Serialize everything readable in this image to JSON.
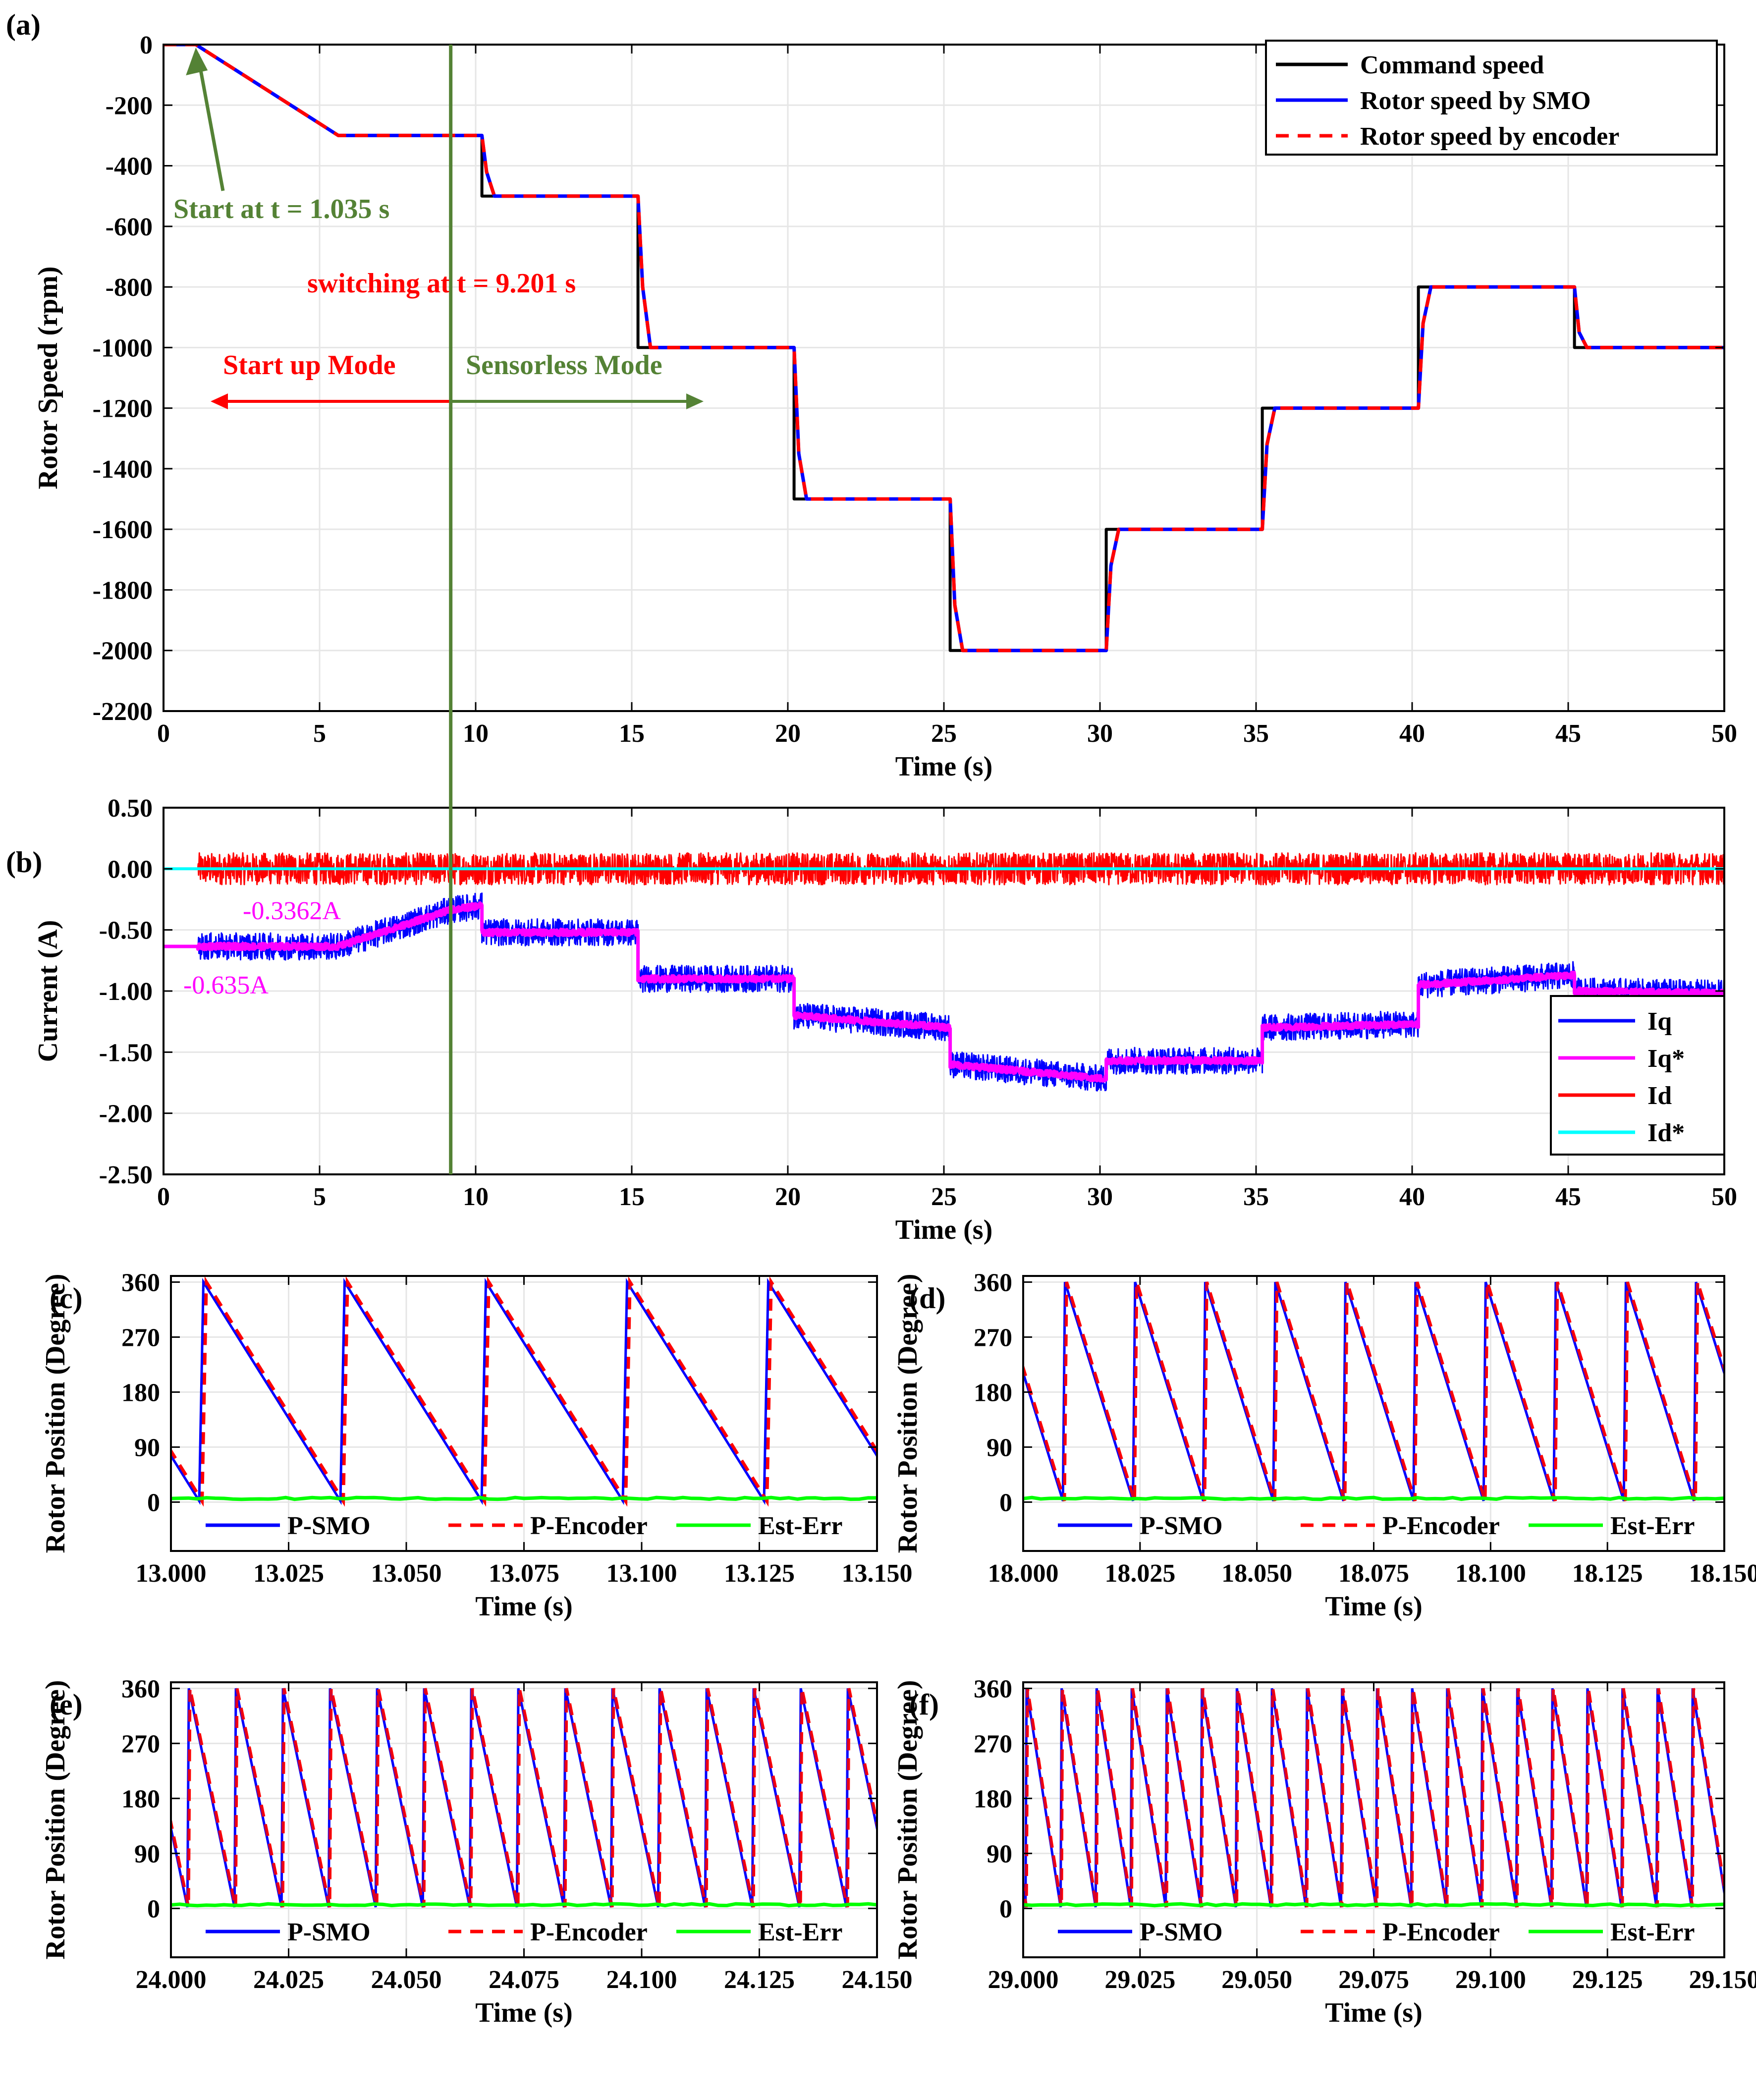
{
  "colors": {
    "command": "#000000",
    "smo": "#0000ff",
    "encoder": "#ff0000",
    "iq": "#0000ff",
    "iq_ref": "#ff00ff",
    "id": "#ff0000",
    "id_ref": "#00ffff",
    "est_err": "#00ff00",
    "start_annot": "#548235",
    "switch_annot": "#ff0000",
    "grid": "#e6e6e6"
  },
  "chart_data": [
    {
      "id": "a",
      "panel_label": "(a)",
      "type": "line",
      "xlabel": "Time (s)",
      "ylabel": "Rotor Speed (rpm)",
      "xlim": [
        0,
        50
      ],
      "ylim": [
        -2200,
        0
      ],
      "xticks": [
        0,
        5,
        10,
        15,
        20,
        25,
        30,
        35,
        40,
        45,
        50
      ],
      "yticks": [
        0,
        -200,
        -400,
        -600,
        -800,
        -1000,
        -1200,
        -1400,
        -1600,
        -1800,
        -2000,
        -2200
      ],
      "grid": true,
      "legend_position": "top-right",
      "series": [
        {
          "name": "Command speed",
          "key": "command",
          "points": [
            [
              0,
              0
            ],
            [
              1.035,
              0
            ],
            [
              5.6,
              -300
            ],
            [
              10.2,
              -300
            ],
            [
              10.2,
              -500
            ],
            [
              15.2,
              -500
            ],
            [
              15.2,
              -1000
            ],
            [
              20.2,
              -1000
            ],
            [
              20.2,
              -1500
            ],
            [
              25.2,
              -1500
            ],
            [
              25.2,
              -2000
            ],
            [
              30.2,
              -2000
            ],
            [
              30.2,
              -1600
            ],
            [
              35.2,
              -1600
            ],
            [
              35.2,
              -1200
            ],
            [
              40.2,
              -1200
            ],
            [
              40.2,
              -800
            ],
            [
              45.2,
              -800
            ],
            [
              45.2,
              -1000
            ],
            [
              50,
              -1000
            ]
          ]
        },
        {
          "name": "Rotor speed by SMO",
          "key": "smo",
          "points": [
            [
              0,
              0
            ],
            [
              1.035,
              0
            ],
            [
              5.6,
              -300
            ],
            [
              10.2,
              -300
            ],
            [
              10.35,
              -420
            ],
            [
              10.6,
              -500
            ],
            [
              15.2,
              -500
            ],
            [
              15.35,
              -800
            ],
            [
              15.6,
              -1000
            ],
            [
              20.2,
              -1000
            ],
            [
              20.35,
              -1350
            ],
            [
              20.6,
              -1500
            ],
            [
              25.2,
              -1500
            ],
            [
              25.35,
              -1850
            ],
            [
              25.6,
              -2000
            ],
            [
              30.2,
              -2000
            ],
            [
              30.35,
              -1720
            ],
            [
              30.6,
              -1600
            ],
            [
              35.2,
              -1600
            ],
            [
              35.35,
              -1320
            ],
            [
              35.6,
              -1200
            ],
            [
              40.2,
              -1200
            ],
            [
              40.35,
              -920
            ],
            [
              40.6,
              -800
            ],
            [
              45.2,
              -800
            ],
            [
              45.35,
              -950
            ],
            [
              45.6,
              -1000
            ],
            [
              50,
              -1000
            ]
          ]
        },
        {
          "name": "Rotor speed by encoder",
          "key": "encoder",
          "dashed": true,
          "points": [
            [
              0,
              0
            ],
            [
              1.035,
              0
            ],
            [
              5.6,
              -300
            ],
            [
              10.2,
              -300
            ],
            [
              10.35,
              -420
            ],
            [
              10.6,
              -500
            ],
            [
              15.2,
              -500
            ],
            [
              15.35,
              -800
            ],
            [
              15.6,
              -1000
            ],
            [
              20.2,
              -1000
            ],
            [
              20.35,
              -1350
            ],
            [
              20.6,
              -1500
            ],
            [
              25.2,
              -1500
            ],
            [
              25.35,
              -1850
            ],
            [
              25.6,
              -2000
            ],
            [
              30.2,
              -2000
            ],
            [
              30.35,
              -1720
            ],
            [
              30.6,
              -1600
            ],
            [
              35.2,
              -1600
            ],
            [
              35.35,
              -1320
            ],
            [
              35.6,
              -1200
            ],
            [
              40.2,
              -1200
            ],
            [
              40.35,
              -920
            ],
            [
              40.6,
              -800
            ],
            [
              45.2,
              -800
            ],
            [
              45.35,
              -950
            ],
            [
              45.6,
              -1000
            ],
            [
              50,
              -1000
            ]
          ]
        }
      ],
      "annotations": {
        "start_text": "Start at t = 1.035 s",
        "start_time": 1.035,
        "switch_text": "switching at t = 9.201 s",
        "switch_time": 9.201,
        "startup_mode": "Start up Mode",
        "sensorless_mode": "Sensorless Mode"
      }
    },
    {
      "id": "b",
      "panel_label": "(b)",
      "type": "line",
      "xlabel": "Time (s)",
      "ylabel": "Current (A)",
      "xlim": [
        0,
        50
      ],
      "ylim": [
        -2.5,
        0.5
      ],
      "xticks": [
        0,
        5,
        10,
        15,
        20,
        25,
        30,
        35,
        40,
        45,
        50
      ],
      "yticks": [
        0.5,
        0,
        -0.5,
        -1,
        -1.5,
        -2,
        -2.5
      ],
      "ytick_labels": [
        "0.50",
        "0.00",
        "-0.50",
        "-1.00",
        "-1.50",
        "-2.00",
        "-2.50"
      ],
      "grid": true,
      "legend_position": "bottom-right",
      "series": [
        {
          "name": "Iq",
          "key": "iq",
          "noise": 0.11,
          "points": [
            [
              0,
              -0.635
            ],
            [
              1.1,
              -0.635
            ],
            [
              5.6,
              -0.635
            ],
            [
              9.2,
              -0.336
            ],
            [
              10.2,
              -0.3
            ],
            [
              10.2,
              -0.52
            ],
            [
              15.2,
              -0.52
            ],
            [
              15.2,
              -0.9
            ],
            [
              20.2,
              -0.9
            ],
            [
              20.2,
              -1.2
            ],
            [
              25.2,
              -1.3
            ],
            [
              25.2,
              -1.6
            ],
            [
              30.2,
              -1.72
            ],
            [
              30.2,
              -1.57
            ],
            [
              35.2,
              -1.57
            ],
            [
              35.2,
              -1.3
            ],
            [
              40.2,
              -1.27
            ],
            [
              40.2,
              -0.95
            ],
            [
              45.2,
              -0.87
            ],
            [
              45.2,
              -1.0
            ],
            [
              50,
              -1.02
            ]
          ]
        },
        {
          "name": "Iq*",
          "key": "iq_ref",
          "noise": 0.025,
          "points": [
            [
              0,
              -0.635
            ],
            [
              5.6,
              -0.635
            ],
            [
              9.2,
              -0.336
            ],
            [
              10.2,
              -0.3
            ],
            [
              10.2,
              -0.52
            ],
            [
              15.2,
              -0.52
            ],
            [
              15.2,
              -0.9
            ],
            [
              20.2,
              -0.9
            ],
            [
              20.2,
              -1.2
            ],
            [
              25.2,
              -1.3
            ],
            [
              25.2,
              -1.6
            ],
            [
              30.2,
              -1.72
            ],
            [
              30.2,
              -1.57
            ],
            [
              35.2,
              -1.57
            ],
            [
              35.2,
              -1.3
            ],
            [
              40.2,
              -1.27
            ],
            [
              40.2,
              -0.95
            ],
            [
              45.2,
              -0.87
            ],
            [
              45.2,
              -1.0
            ],
            [
              50,
              -1.02
            ]
          ]
        },
        {
          "name": "Id",
          "key": "id",
          "noise": 0.13,
          "points": [
            [
              0,
              0
            ],
            [
              1.1,
              0
            ],
            [
              50,
              0
            ]
          ]
        },
        {
          "name": "Id*",
          "key": "id_ref",
          "points": [
            [
              0,
              0
            ],
            [
              50,
              0
            ]
          ]
        }
      ],
      "annotations": {
        "iq_switch_label": "-0.3362A",
        "iq_start_label": "-0.635A"
      }
    },
    {
      "id": "c",
      "panel_label": "(c)",
      "type": "line",
      "xlabel": "Time (s)",
      "ylabel": "Rotor Position (Degree)",
      "xlim": [
        13.0,
        13.15
      ],
      "ylim": [
        -80,
        370
      ],
      "xticks": [
        13.0,
        13.025,
        13.05,
        13.075,
        13.1,
        13.125,
        13.15
      ],
      "xtick_labels": [
        "13.000",
        "13.025",
        "13.050",
        "13.075",
        "13.100",
        "13.125",
        "13.150"
      ],
      "yticks": [
        0,
        90,
        180,
        270,
        360
      ],
      "period_s": 0.03,
      "phase_s": 13.006,
      "est_err_deg": 6,
      "series_names": [
        "P-SMO",
        "P-Encoder",
        "Est-Err"
      ]
    },
    {
      "id": "d",
      "panel_label": "(d)",
      "type": "line",
      "xlabel": "Time (s)",
      "ylabel": "Rotor Position (Degree)",
      "xlim": [
        18.0,
        18.15
      ],
      "ylim": [
        -80,
        370
      ],
      "xticks": [
        18.0,
        18.025,
        18.05,
        18.075,
        18.1,
        18.125,
        18.15
      ],
      "xtick_labels": [
        "18.000",
        "18.025",
        "18.050",
        "18.075",
        "18.100",
        "18.125",
        "18.150"
      ],
      "yticks": [
        0,
        90,
        180,
        270,
        360
      ],
      "period_s": 0.015,
      "phase_s": 18.0085,
      "est_err_deg": 6,
      "series_names": [
        "P-SMO",
        "P-Encoder",
        "Est-Err"
      ]
    },
    {
      "id": "e",
      "panel_label": "(e)",
      "type": "line",
      "xlabel": "Time (s)",
      "ylabel": "Rotor Position (Degree)",
      "xlim": [
        24.0,
        24.15
      ],
      "ylim": [
        -80,
        370
      ],
      "xticks": [
        24.0,
        24.025,
        24.05,
        24.075,
        24.1,
        24.125,
        24.15
      ],
      "xtick_labels": [
        "24.000",
        "24.025",
        "24.050",
        "24.075",
        "24.100",
        "24.125",
        "24.150"
      ],
      "yticks": [
        0,
        90,
        180,
        270,
        360
      ],
      "period_s": 0.01,
      "phase_s": 24.0035,
      "est_err_deg": 6,
      "series_names": [
        "P-SMO",
        "P-Encoder",
        "Est-Err"
      ]
    },
    {
      "id": "f",
      "panel_label": "(f)",
      "type": "line",
      "xlabel": "Time (s)",
      "ylabel": "Rotor Position (Degree)",
      "xlim": [
        29.0,
        29.15
      ],
      "ylim": [
        -80,
        370
      ],
      "xticks": [
        29.0,
        29.025,
        29.05,
        29.075,
        29.1,
        29.125,
        29.15
      ],
      "xtick_labels": [
        "29.000",
        "29.025",
        "29.050",
        "29.075",
        "29.100",
        "29.125",
        "29.150"
      ],
      "yticks": [
        0,
        90,
        180,
        270,
        360
      ],
      "period_s": 0.0075,
      "phase_s": 29.0005,
      "est_err_deg": 6,
      "series_names": [
        "P-SMO",
        "P-Encoder",
        "Est-Err"
      ]
    }
  ]
}
